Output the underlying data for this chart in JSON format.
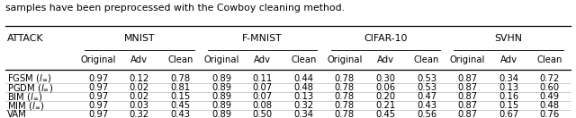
{
  "caption": "samples have been preprocessed with the Cowboy cleaning method.",
  "col_groups": [
    "MNIST",
    "F-MNIST",
    "CIFAR-10",
    "SVHN"
  ],
  "sub_cols": [
    "Original",
    "Adv",
    "Clean"
  ],
  "row_labels": [
    "FGSM ($l_{\\infty}$)",
    "PGDM ($l_{\\infty}$)",
    "BIM ($l_{\\infty}$)",
    "MIM ($l_{\\infty}$)",
    "VAM"
  ],
  "attack_col_header": "ATTACK",
  "data": [
    [
      0.97,
      0.12,
      0.78,
      0.89,
      0.11,
      0.44,
      0.78,
      0.3,
      0.53,
      0.87,
      0.34,
      0.72
    ],
    [
      0.97,
      0.02,
      0.81,
      0.89,
      0.07,
      0.48,
      0.78,
      0.06,
      0.53,
      0.87,
      0.13,
      0.6
    ],
    [
      0.97,
      0.02,
      0.15,
      0.89,
      0.07,
      0.13,
      0.78,
      0.2,
      0.47,
      0.87,
      0.16,
      0.49
    ],
    [
      0.97,
      0.03,
      0.45,
      0.89,
      0.08,
      0.32,
      0.78,
      0.21,
      0.43,
      0.87,
      0.15,
      0.48
    ],
    [
      0.97,
      0.32,
      0.43,
      0.89,
      0.5,
      0.34,
      0.78,
      0.45,
      0.56,
      0.87,
      0.67,
      0.76
    ]
  ],
  "bg_color": "#ffffff",
  "line_color": "#000000",
  "text_color": "#000000",
  "font_size": 7.2,
  "header_font_size": 7.8,
  "caption_font_size": 7.8
}
